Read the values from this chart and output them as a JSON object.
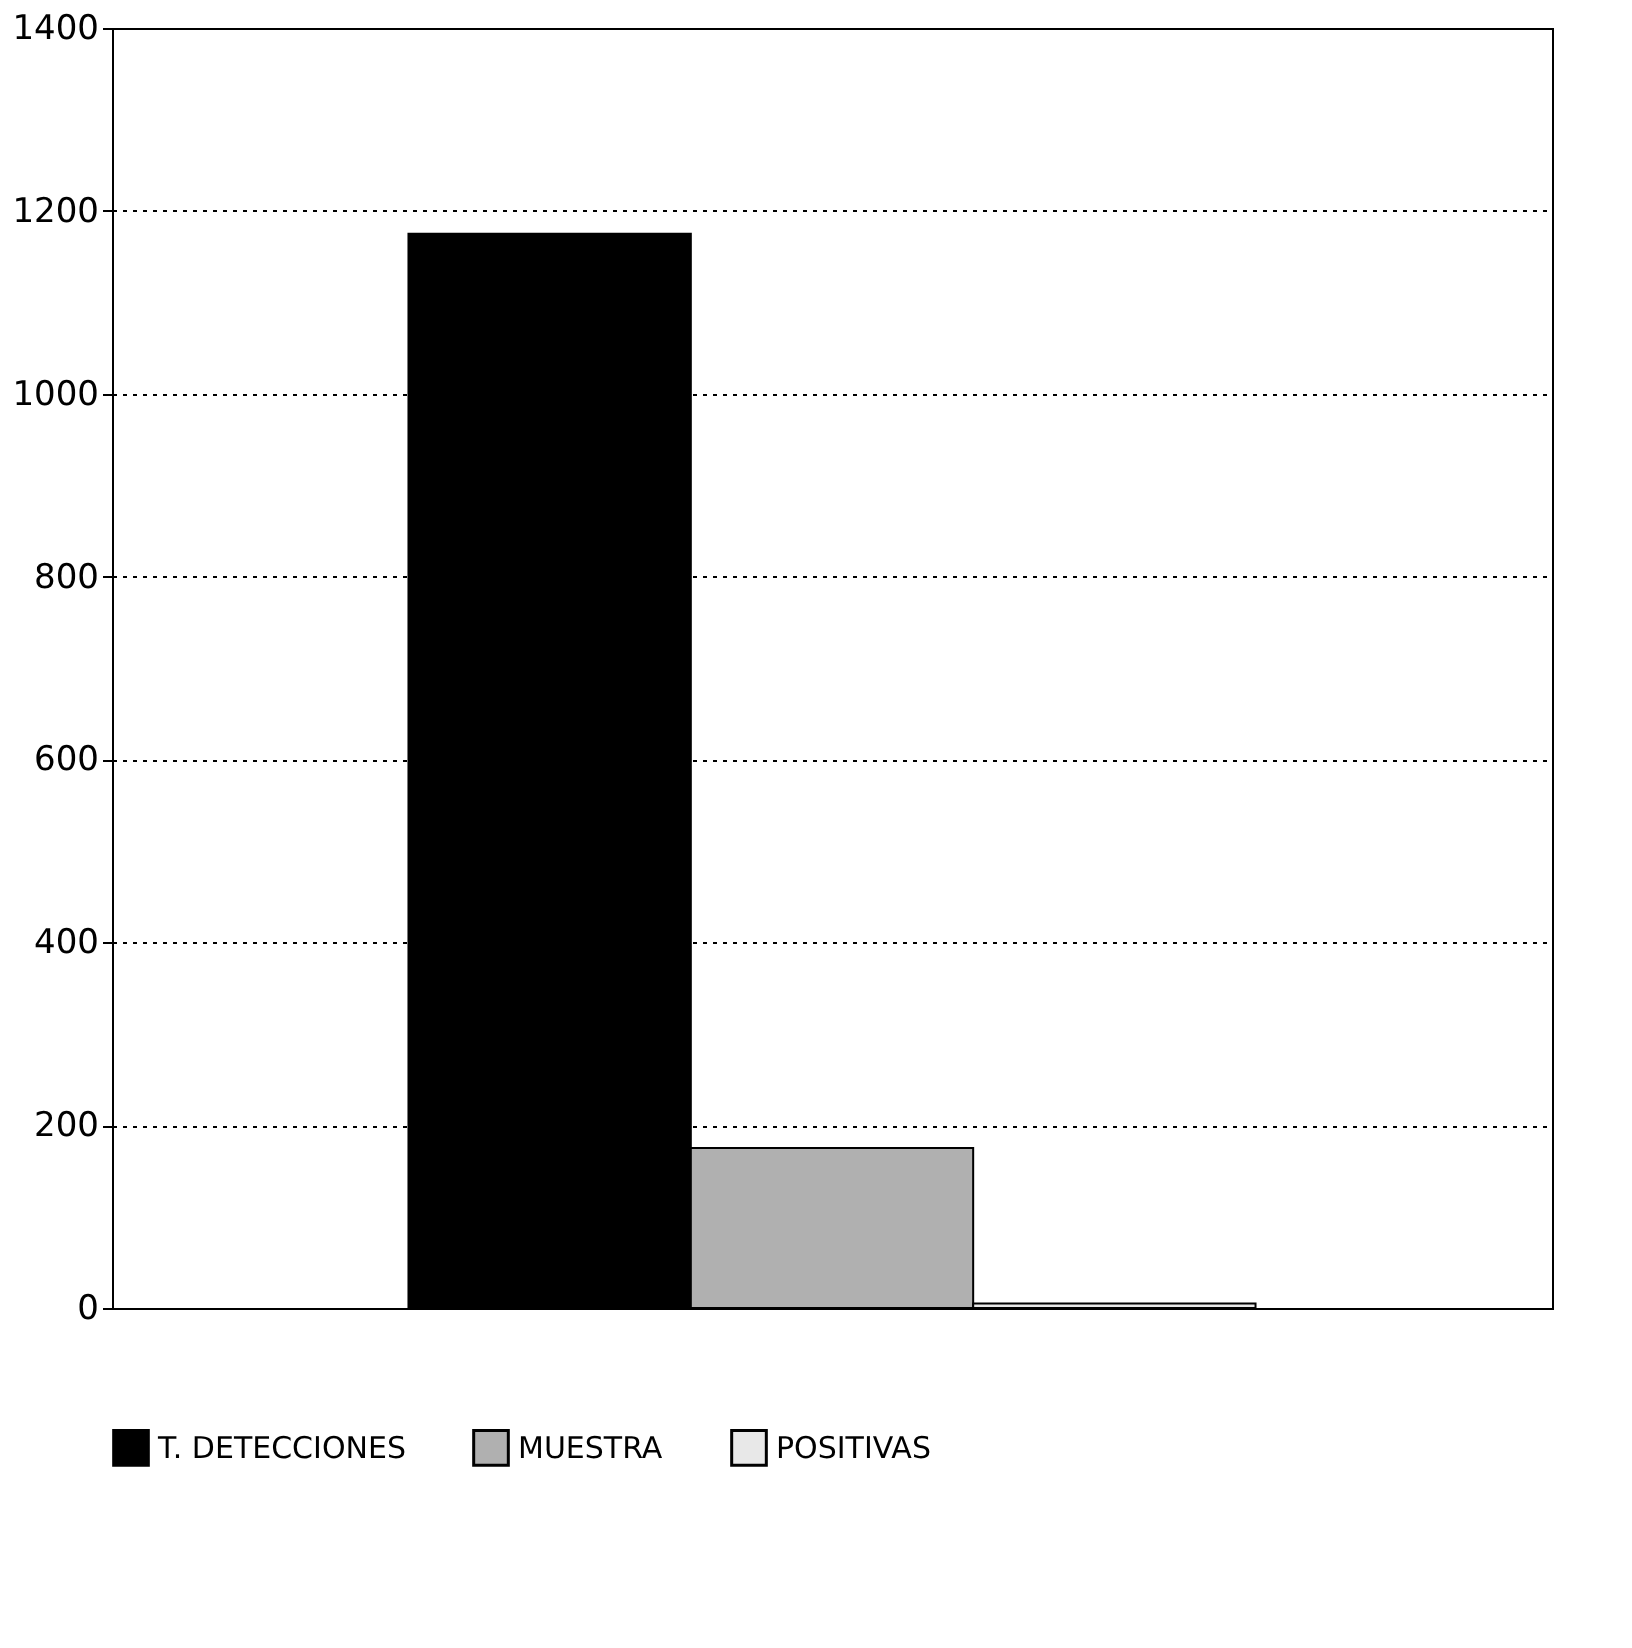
{
  "chart_data": {
    "type": "bar",
    "categories": [
      null
    ],
    "series": [
      {
        "name": "T. DETECCIONES",
        "color": "#000000",
        "values": [
          1175
        ]
      },
      {
        "name": "MUESTRA",
        "color": "#b0b0b0",
        "values": [
          175
        ]
      },
      {
        "name": "POSITIVAS",
        "color": "#e8e8e8",
        "values": [
          5
        ]
      }
    ],
    "ylim": [
      0,
      1400
    ],
    "yticks": [
      0,
      200,
      400,
      600,
      800,
      1000,
      1200,
      1400
    ],
    "grid": "y",
    "legend": "bottom",
    "tick_labels": "y"
  }
}
